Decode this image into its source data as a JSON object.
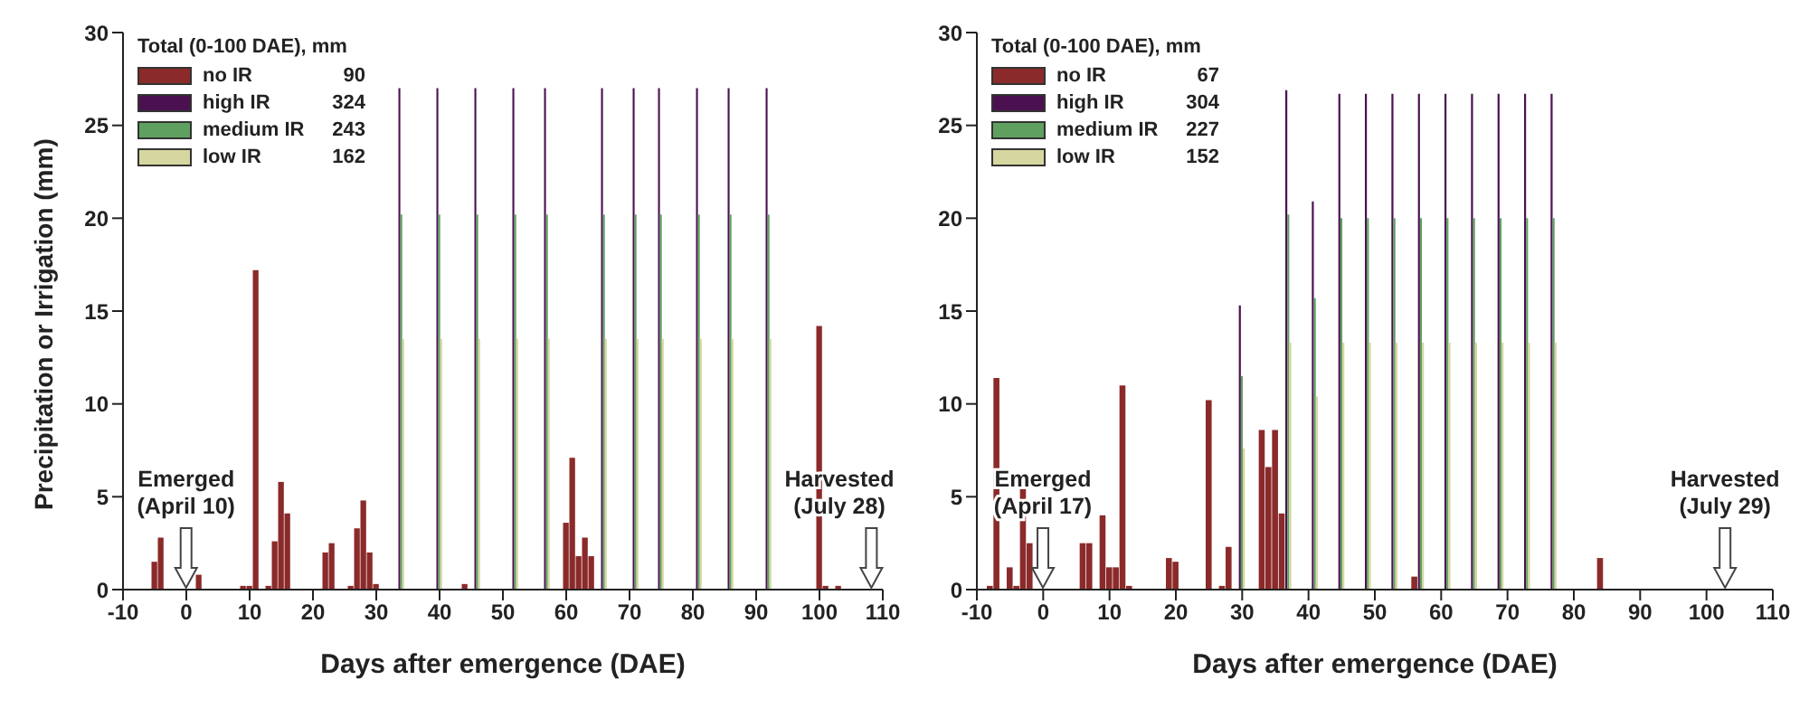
{
  "chart_data": [
    {
      "type": "bar",
      "xlabel": "Days after emergence (DAE)",
      "ylabel": "Precipitation or Irrigation (mm)",
      "legend_title": "Total (0-100 DAE), mm",
      "legend": "top left",
      "xlim": [
        -10,
        110
      ],
      "xticks": [
        -10,
        0,
        10,
        20,
        30,
        40,
        50,
        60,
        70,
        80,
        90,
        100,
        110
      ],
      "ylim": [
        0,
        30
      ],
      "yticks": [
        0,
        5,
        10,
        15,
        20,
        25,
        30
      ],
      "series": [
        {
          "name": "no IR",
          "color": "#8b2a2a",
          "x": [
            -5,
            -4,
            2,
            9,
            10,
            11,
            13,
            14,
            15,
            16,
            22,
            23,
            26,
            27,
            28,
            29,
            30,
            44,
            60,
            61,
            62,
            63,
            64,
            100,
            101,
            103
          ],
          "values": [
            1.5,
            2.8,
            0.8,
            0.2,
            0.2,
            17.2,
            0.2,
            2.6,
            5.8,
            4.1,
            2.0,
            2.5,
            0.2,
            3.3,
            4.8,
            2.0,
            0.3,
            0.3,
            3.6,
            7.1,
            1.8,
            2.8,
            1.8,
            14.2,
            0.2,
            0.2
          ]
        },
        {
          "name": "high IR",
          "color": "#4b1050",
          "x": [
            34,
            40,
            46,
            52,
            57,
            66,
            71,
            75,
            81,
            86,
            92
          ],
          "values": [
            27,
            27,
            27,
            27,
            27,
            27,
            27,
            27,
            27,
            27,
            27
          ]
        },
        {
          "name": "medium IR",
          "color": "#5fa060",
          "x": [
            34,
            40,
            46,
            52,
            57,
            66,
            71,
            75,
            81,
            86,
            92
          ],
          "values": [
            20.2,
            20.2,
            20.2,
            20.2,
            20.2,
            20.2,
            20.2,
            20.2,
            20.2,
            20.2,
            20.2
          ]
        },
        {
          "name": "low IR",
          "color": "#d6d6a0",
          "x": [
            34,
            40,
            46,
            52,
            57,
            66,
            71,
            75,
            81,
            86,
            92
          ],
          "values": [
            13.5,
            13.5,
            13.5,
            13.5,
            13.5,
            13.5,
            13.5,
            13.5,
            13.5,
            13.5,
            13.5
          ]
        }
      ],
      "annotations": [
        "90",
        "324",
        "243",
        "162",
        "Emerged (April 10)",
        "Harvested (July 28)"
      ]
    },
    {
      "type": "bar",
      "xlabel": "Days after emergence (DAE)",
      "legend_title": "Total (0-100 DAE), mm",
      "legend": "top left",
      "xlim": [
        -10,
        110
      ],
      "xticks": [
        -10,
        0,
        10,
        20,
        30,
        40,
        50,
        60,
        70,
        80,
        90,
        100,
        110
      ],
      "ylim": [
        0,
        30
      ],
      "yticks": [
        0,
        5,
        10,
        15,
        20,
        25,
        30
      ],
      "series": [
        {
          "name": "no IR",
          "color": "#8b2a2a",
          "x": [
            -8,
            -7,
            -5,
            -4,
            -3,
            -2,
            6,
            7,
            9,
            10,
            11,
            12,
            13,
            19,
            20,
            25,
            27,
            28,
            33,
            34,
            35,
            36,
            56,
            84
          ],
          "values": [
            0.2,
            11.4,
            1.2,
            0.2,
            6.3,
            2.5,
            2.5,
            2.5,
            4.0,
            1.2,
            1.2,
            11.0,
            0.2,
            1.7,
            1.5,
            10.2,
            0.2,
            2.3,
            8.6,
            6.6,
            8.6,
            4.1,
            0.7,
            1.7
          ]
        },
        {
          "name": "high IR",
          "color": "#4b1050",
          "x": [
            30,
            37,
            41,
            45,
            49,
            53,
            57,
            61,
            65,
            69,
            73,
            77
          ],
          "values": [
            15.3,
            26.9,
            20.9,
            26.7,
            26.7,
            26.7,
            26.7,
            26.7,
            26.7,
            26.7,
            26.7,
            26.7
          ]
        },
        {
          "name": "medium IR",
          "color": "#5fa060",
          "x": [
            30,
            37,
            41,
            45,
            49,
            53,
            57,
            61,
            65,
            69,
            73,
            77
          ],
          "values": [
            11.5,
            20.2,
            15.7,
            20.0,
            20.0,
            20.0,
            20.0,
            20.0,
            20.0,
            20.0,
            20.0,
            20.0
          ]
        },
        {
          "name": "low IR",
          "color": "#d6d6a0",
          "x": [
            30,
            37,
            41,
            45,
            49,
            53,
            57,
            61,
            65,
            69,
            73,
            77
          ],
          "values": [
            7.6,
            13.3,
            10.4,
            13.3,
            13.3,
            13.3,
            13.3,
            13.3,
            13.3,
            13.3,
            13.3,
            13.3
          ]
        }
      ],
      "annotations": [
        "67",
        "304",
        "227",
        "152",
        "Emerged (April 17)",
        "Harvested (July 29)"
      ]
    }
  ]
}
